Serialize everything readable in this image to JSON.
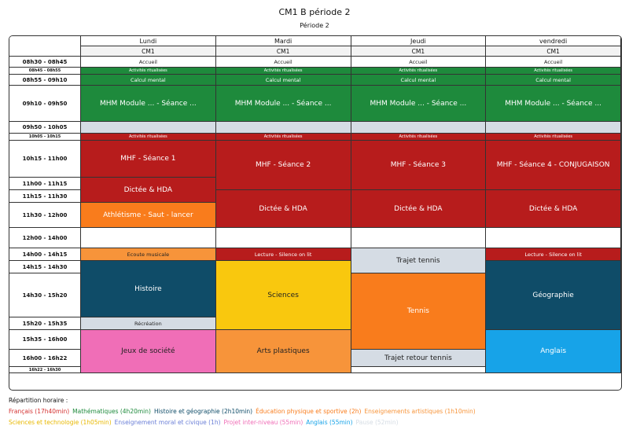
{
  "title": "CM1 B période 2",
  "subtitle": "Période 2",
  "days": [
    "Lundi",
    "Mardi",
    "Jeudi",
    "vendredi"
  ],
  "classes": [
    "CM1",
    "CM1",
    "CM1",
    "CM1"
  ],
  "slots": [
    {
      "label": "08h30 - 08h45",
      "y": 0,
      "h": 1,
      "small": false
    },
    {
      "label": "08h45 - 08h55",
      "y": 1,
      "h": 1,
      "small": true
    },
    {
      "label": "08h55 - 09h10",
      "y": 2,
      "h": 1,
      "small": false
    },
    {
      "label": "09h10 - 09h50",
      "y": 3,
      "h": 1,
      "small": false
    },
    {
      "label": "09h50 - 10h05",
      "y": 4,
      "h": 1,
      "small": false
    },
    {
      "label": "10h05 - 10h15",
      "y": 5,
      "h": 1,
      "small": true
    },
    {
      "label": "10h15 - 11h00",
      "y": 6,
      "h": 1,
      "small": false
    },
    {
      "label": "11h00 - 11h15",
      "y": 7,
      "h": 1,
      "small": false
    },
    {
      "label": "11h15 - 11h30",
      "y": 8,
      "h": 1,
      "small": false
    },
    {
      "label": "11h30 - 12h00",
      "y": 9,
      "h": 1,
      "small": false
    },
    {
      "label": "12h00 - 14h00",
      "y": 10,
      "h": 1,
      "small": false
    },
    {
      "label": "14h00 - 14h15",
      "y": 11,
      "h": 1,
      "small": false
    },
    {
      "label": "14h15 - 14h30",
      "y": 12,
      "h": 1,
      "small": false
    },
    {
      "label": "14h30 - 15h20",
      "y": 13,
      "h": 1,
      "small": false
    },
    {
      "label": "15h20 - 15h35",
      "y": 14,
      "h": 1,
      "small": false
    },
    {
      "label": "15h35 - 16h00",
      "y": 15,
      "h": 1,
      "small": false
    },
    {
      "label": "16h00 - 16h22",
      "y": 16,
      "h": 1,
      "small": false
    },
    {
      "label": "16h22 - 16h30",
      "y": 17,
      "h": 1,
      "small": true
    }
  ],
  "blocks": [
    {
      "day": 0,
      "from": 0,
      "to": 0,
      "label": "Accueil",
      "color": "#ffffff",
      "text": "#222222",
      "size": "small"
    },
    {
      "day": 1,
      "from": 0,
      "to": 0,
      "label": "Accueil",
      "color": "#ffffff",
      "text": "#222222",
      "size": "small"
    },
    {
      "day": 2,
      "from": 0,
      "to": 0,
      "label": "Accueil",
      "color": "#ffffff",
      "text": "#222222",
      "size": "small"
    },
    {
      "day": 3,
      "from": 0,
      "to": 0,
      "label": "Accueil",
      "color": "#ffffff",
      "text": "#222222",
      "size": "small"
    },
    {
      "day": 0,
      "from": 1,
      "to": 1,
      "label": "Activités ritualisées",
      "color": "#1e8a3c",
      "text": "#ffffff",
      "size": "tiny"
    },
    {
      "day": 1,
      "from": 1,
      "to": 1,
      "label": "Activités ritualisées",
      "color": "#1e8a3c",
      "text": "#ffffff",
      "size": "tiny"
    },
    {
      "day": 2,
      "from": 1,
      "to": 1,
      "label": "Activités ritualisées",
      "color": "#1e8a3c",
      "text": "#ffffff",
      "size": "tiny"
    },
    {
      "day": 3,
      "from": 1,
      "to": 1,
      "label": "Activités ritualisées",
      "color": "#1e8a3c",
      "text": "#ffffff",
      "size": "tiny"
    },
    {
      "day": 0,
      "from": 2,
      "to": 2,
      "label": "Calcul mental",
      "color": "#1e8a3c",
      "text": "#ffffff",
      "size": "small"
    },
    {
      "day": 1,
      "from": 2,
      "to": 2,
      "label": "Calcul mental",
      "color": "#1e8a3c",
      "text": "#ffffff",
      "size": "small"
    },
    {
      "day": 2,
      "from": 2,
      "to": 2,
      "label": "Calcul mental",
      "color": "#1e8a3c",
      "text": "#ffffff",
      "size": "small"
    },
    {
      "day": 3,
      "from": 2,
      "to": 2,
      "label": "Calcul mental",
      "color": "#1e8a3c",
      "text": "#ffffff",
      "size": "small"
    },
    {
      "day": 0,
      "from": 3,
      "to": 3,
      "label": "MHM Module ... - Séance ...",
      "color": "#1e8a3c",
      "text": "#ffffff",
      "size": "normal"
    },
    {
      "day": 1,
      "from": 3,
      "to": 3,
      "label": "MHM Module ... - Séance ...",
      "color": "#1e8a3c",
      "text": "#ffffff",
      "size": "normal"
    },
    {
      "day": 2,
      "from": 3,
      "to": 3,
      "label": "MHM Module ... - Séance ...",
      "color": "#1e8a3c",
      "text": "#ffffff",
      "size": "normal"
    },
    {
      "day": 3,
      "from": 3,
      "to": 3,
      "label": "MHM Module ... - Séance ...",
      "color": "#1e8a3c",
      "text": "#ffffff",
      "size": "normal"
    },
    {
      "day": 0,
      "from": 4,
      "to": 4,
      "label": "",
      "color": "#d5dce4",
      "text": "#222222",
      "size": "small"
    },
    {
      "day": 1,
      "from": 4,
      "to": 4,
      "label": "",
      "color": "#d5dce4",
      "text": "#222222",
      "size": "small"
    },
    {
      "day": 2,
      "from": 4,
      "to": 4,
      "label": "",
      "color": "#d5dce4",
      "text": "#222222",
      "size": "small"
    },
    {
      "day": 3,
      "from": 4,
      "to": 4,
      "label": "",
      "color": "#d5dce4",
      "text": "#222222",
      "size": "small"
    },
    {
      "day": 0,
      "from": 5,
      "to": 5,
      "label": "Activités ritualisées",
      "color": "#b71c1c",
      "text": "#ffffff",
      "size": "tiny"
    },
    {
      "day": 1,
      "from": 5,
      "to": 5,
      "label": "Activités ritualisées",
      "color": "#b71c1c",
      "text": "#ffffff",
      "size": "tiny"
    },
    {
      "day": 2,
      "from": 5,
      "to": 5,
      "label": "Activités ritualisées",
      "color": "#b71c1c",
      "text": "#ffffff",
      "size": "tiny"
    },
    {
      "day": 3,
      "from": 5,
      "to": 5,
      "label": "Activités ritualisées",
      "color": "#b71c1c",
      "text": "#ffffff",
      "size": "tiny"
    },
    {
      "day": 0,
      "from": 6,
      "to": 6,
      "label": "MHF - Séance 1",
      "color": "#b71c1c",
      "text": "#ffffff",
      "size": "normal"
    },
    {
      "day": 0,
      "from": 7,
      "to": 8,
      "label": "Dictée & HDA",
      "color": "#b71c1c",
      "text": "#ffffff",
      "size": "normal"
    },
    {
      "day": 0,
      "from": 9,
      "to": 9,
      "label": "Athlétisme - Saut - lancer",
      "color": "#f97c1c",
      "text": "#ffffff",
      "size": "normal"
    },
    {
      "day": 1,
      "from": 6,
      "to": 7,
      "label": "MHF - Séance 2",
      "color": "#b71c1c",
      "text": "#ffffff",
      "size": "normal"
    },
    {
      "day": 1,
      "from": 8,
      "to": 9,
      "label": "Dictée & HDA",
      "color": "#b71c1c",
      "text": "#ffffff",
      "size": "normal"
    },
    {
      "day": 2,
      "from": 6,
      "to": 7,
      "label": "MHF - Séance 3",
      "color": "#b71c1c",
      "text": "#ffffff",
      "size": "normal"
    },
    {
      "day": 2,
      "from": 8,
      "to": 9,
      "label": "Dictée & HDA",
      "color": "#b71c1c",
      "text": "#ffffff",
      "size": "normal"
    },
    {
      "day": 3,
      "from": 6,
      "to": 7,
      "label": "MHF - Séance 4 - CONJUGAISON",
      "color": "#b71c1c",
      "text": "#ffffff",
      "size": "normal"
    },
    {
      "day": 3,
      "from": 8,
      "to": 9,
      "label": "Dictée & HDA",
      "color": "#b71c1c",
      "text": "#ffffff",
      "size": "normal"
    },
    {
      "day": 0,
      "from": 10,
      "to": 10,
      "label": "",
      "color": "#ffffff",
      "text": "#222222",
      "size": "small"
    },
    {
      "day": 1,
      "from": 10,
      "to": 10,
      "label": "",
      "color": "#ffffff",
      "text": "#222222",
      "size": "small"
    },
    {
      "day": 2,
      "from": 10,
      "to": 10,
      "label": "",
      "color": "#ffffff",
      "text": "#222222",
      "size": "small"
    },
    {
      "day": 3,
      "from": 10,
      "to": 10,
      "label": "",
      "color": "#ffffff",
      "text": "#222222",
      "size": "small"
    },
    {
      "day": 0,
      "from": 11,
      "to": 11,
      "label": "Ecoute musicale",
      "color": "#f7943a",
      "text": "#222222",
      "size": "small"
    },
    {
      "day": 1,
      "from": 11,
      "to": 11,
      "label": "Lecture - Silence on lit",
      "color": "#b71c1c",
      "text": "#ffffff",
      "size": "small"
    },
    {
      "day": 2,
      "from": 11,
      "to": 12,
      "label": "Trajet tennis",
      "color": "#d5dce4",
      "text": "#222222",
      "size": "normal"
    },
    {
      "day": 3,
      "from": 11,
      "to": 11,
      "label": "Lecture - Silence on lit",
      "color": "#b71c1c",
      "text": "#ffffff",
      "size": "small"
    },
    {
      "day": 0,
      "from": 12,
      "to": 13,
      "label": "Histoire",
      "color": "#0f4c68",
      "text": "#ffffff",
      "size": "normal"
    },
    {
      "day": 1,
      "from": 12,
      "to": 14,
      "label": "Sciences",
      "color": "#f9c80e",
      "text": "#222222",
      "size": "normal"
    },
    {
      "day": 2,
      "from": 13,
      "to": 15,
      "label": "Tennis",
      "color": "#f97c1c",
      "text": "#ffffff",
      "size": "normal"
    },
    {
      "day": 3,
      "from": 12,
      "to": 14,
      "label": "Géographie",
      "color": "#0f4c68",
      "text": "#ffffff",
      "size": "normal"
    },
    {
      "day": 0,
      "from": 14,
      "to": 14,
      "label": "Récréation",
      "color": "#d5dce4",
      "text": "#222222",
      "size": "small"
    },
    {
      "day": 0,
      "from": 15,
      "to": 17,
      "label": "Jeux de société",
      "color": "#f06eb7",
      "text": "#222222",
      "size": "normal"
    },
    {
      "day": 1,
      "from": 15,
      "to": 17,
      "label": "Arts plastiques",
      "color": "#f7943a",
      "text": "#222222",
      "size": "normal"
    },
    {
      "day": 2,
      "from": 16,
      "to": 16,
      "label": "Trajet retour tennis",
      "color": "#d5dce4",
      "text": "#222222",
      "size": "normal"
    },
    {
      "day": 2,
      "from": 17,
      "to": 17,
      "label": "",
      "color": "#ffffff",
      "text": "#222222",
      "size": "small"
    },
    {
      "day": 3,
      "from": 15,
      "to": 17,
      "label": "Anglais",
      "color": "#17a3e8",
      "text": "#ffffff",
      "size": "normal"
    }
  ],
  "legend": {
    "title": "Répartition horaire :",
    "items": [
      {
        "label": "Français (17h40min)",
        "color": "#d32f2f"
      },
      {
        "label": "Mathématiques (4h20min)",
        "color": "#1e8a3c"
      },
      {
        "label": "Histoire et géographie (2h10min)",
        "color": "#0f4c68"
      },
      {
        "label": "Éducation physique et sportive (2h)",
        "color": "#f97c1c"
      },
      {
        "label": "Enseignements artistiques (1h10min)",
        "color": "#f7943a"
      },
      {
        "label": "Sciences et technologie (1h05min)",
        "color": "#e8b800"
      },
      {
        "label": "Enseignement moral et civique (1h)",
        "color": "#6b7fd7"
      },
      {
        "label": "Projet inter-niveau (55min)",
        "color": "#f06eb7"
      },
      {
        "label": "Anglais (55min)",
        "color": "#17a3e8"
      },
      {
        "label": "Pause (52min)",
        "color": "#d5dce4"
      }
    ]
  }
}
